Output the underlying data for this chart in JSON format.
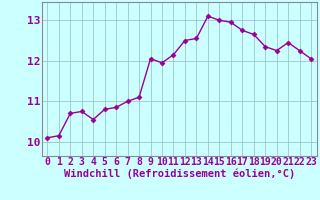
{
  "x": [
    0,
    1,
    2,
    3,
    4,
    5,
    6,
    7,
    8,
    9,
    10,
    11,
    12,
    13,
    14,
    15,
    16,
    17,
    18,
    19,
    20,
    21,
    22,
    23
  ],
  "y": [
    10.1,
    10.15,
    10.7,
    10.75,
    10.55,
    10.8,
    10.85,
    11.0,
    11.1,
    12.05,
    11.95,
    12.15,
    12.5,
    12.55,
    13.1,
    13.0,
    12.95,
    12.75,
    12.65,
    12.35,
    12.25,
    12.45,
    12.25,
    12.05
  ],
  "line_color": "#990099",
  "marker": "D",
  "marker_size": 2.5,
  "bg_color": "#ccffff",
  "grid_color": "#99bbbb",
  "xlabel": "Windchill (Refroidissement éolien,°C)",
  "xlabel_color": "#990099",
  "tick_color": "#990099",
  "yticks": [
    10,
    11,
    12,
    13
  ],
  "xticks": [
    0,
    1,
    2,
    3,
    4,
    5,
    6,
    7,
    8,
    9,
    10,
    11,
    12,
    13,
    14,
    15,
    16,
    17,
    18,
    19,
    20,
    21,
    22,
    23
  ],
  "ylim": [
    9.65,
    13.45
  ],
  "xlim": [
    -0.5,
    23.5
  ],
  "tick_fontsize": 7,
  "xlabel_fontsize": 7.5,
  "linewidth": 1.0
}
